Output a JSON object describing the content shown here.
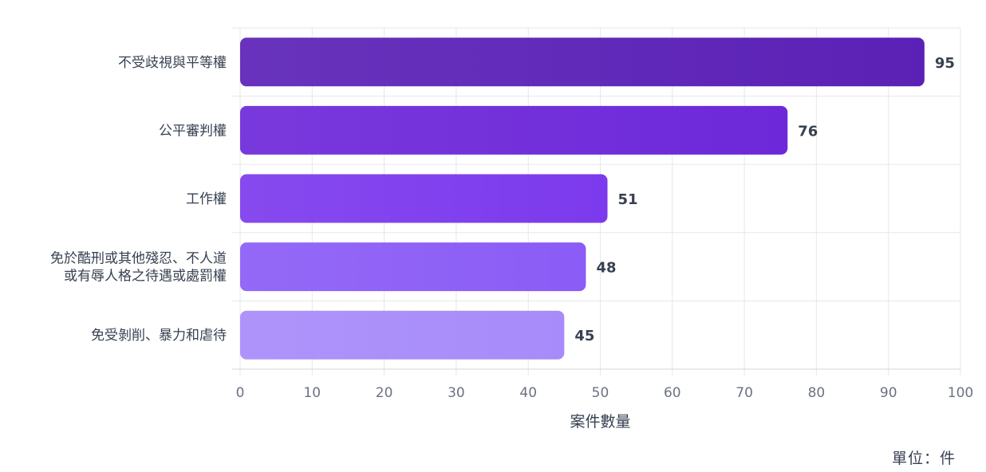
{
  "chart_data": {
    "type": "bar",
    "orientation": "horizontal",
    "categories": [
      [
        "不受歧視與平等權"
      ],
      [
        "公平審判權"
      ],
      [
        "工作權"
      ],
      [
        "免於酷刑或其他殘忍、不人道",
        "或有辱人格之待遇或處罰權"
      ],
      [
        "免受剝削、暴力和虐待"
      ]
    ],
    "values": [
      95,
      76,
      51,
      48,
      45
    ],
    "bar_colors": [
      "#5b21b6",
      "#6d28d9",
      "#7c3aed",
      "#8b5cf6",
      "#a78bfa"
    ],
    "xlabel": "案件數量",
    "xlim": [
      0,
      100
    ],
    "xticks": [
      0,
      10,
      20,
      30,
      40,
      50,
      60,
      70,
      80,
      90,
      100
    ],
    "grid": true
  },
  "unit_note": "單位：件"
}
